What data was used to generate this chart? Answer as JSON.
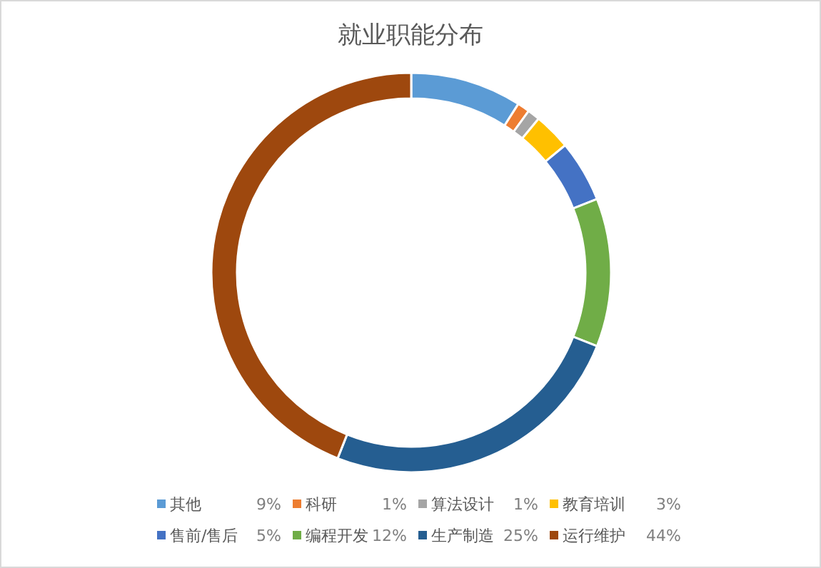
{
  "chart_data": {
    "type": "donut",
    "title": "就业职能分布",
    "categories": [
      "其他",
      "科研",
      "算法设计",
      "教育培训",
      "售前/售后",
      "编程开发",
      "生产制造",
      "运行维护"
    ],
    "values": [
      9,
      1,
      1,
      3,
      5,
      12,
      25,
      44
    ],
    "colors": [
      "#5b9bd5",
      "#ed7d31",
      "#a5a5a5",
      "#ffc000",
      "#4472c4",
      "#70ad47",
      "#255e91",
      "#9e480e"
    ],
    "value_labels": [
      "9%",
      "1%",
      "1%",
      "3%",
      "5%",
      "12%",
      "25%",
      "44%"
    ],
    "legend": "bottom"
  }
}
